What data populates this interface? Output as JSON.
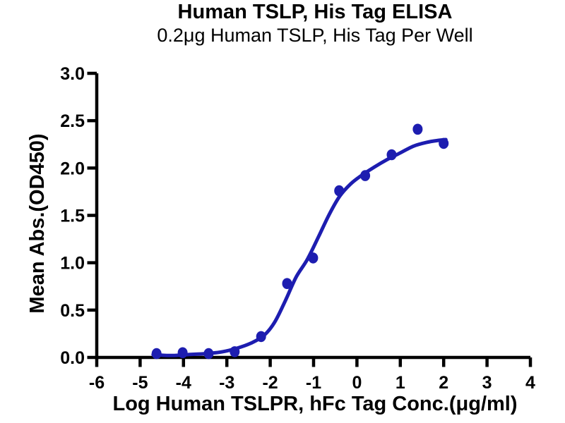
{
  "chart_data": {
    "type": "scatter",
    "title": "Human TSLP, His Tag ELISA",
    "subtitle": "0.2μg Human TSLP, His Tag Per Well",
    "xlabel": "Log Human TSLPR, hFc Tag Conc.(μg/ml)",
    "ylabel": "Mean Abs.(OD450)",
    "xlim": [
      -6,
      4
    ],
    "ylim": [
      0,
      3
    ],
    "x_ticks": [
      -6,
      -5,
      -4,
      -3,
      -2,
      -1,
      0,
      1,
      2,
      3,
      4
    ],
    "y_ticks": [
      0.0,
      0.5,
      1.0,
      1.5,
      2.0,
      2.5,
      3.0
    ],
    "grid": false,
    "legend": null,
    "series": [
      {
        "name": "measured-data-points",
        "type": "scatter",
        "x": [
          -4.62,
          -4.02,
          -3.42,
          -2.82,
          -2.21,
          -1.61,
          -1.01,
          -0.41,
          0.19,
          0.8,
          1.4,
          2.0
        ],
        "y": [
          0.04,
          0.05,
          0.04,
          0.06,
          0.22,
          0.78,
          1.05,
          1.76,
          1.92,
          2.14,
          2.41,
          2.26
        ]
      },
      {
        "name": "sigmoid-fit-curve",
        "type": "line",
        "x": [
          -4.7,
          -4.3,
          -3.9,
          -3.5,
          -3.1,
          -2.75,
          -2.45,
          -2.15,
          -1.9,
          -1.65,
          -1.4,
          -1.15,
          -0.9,
          -0.65,
          -0.4,
          -0.15,
          0.1,
          0.4,
          0.7,
          1.0,
          1.3,
          1.6,
          1.85,
          2.05
        ],
        "y": [
          0.03,
          0.02,
          0.03,
          0.04,
          0.06,
          0.1,
          0.15,
          0.23,
          0.37,
          0.6,
          0.85,
          1.03,
          1.26,
          1.5,
          1.7,
          1.83,
          1.92,
          2.01,
          2.09,
          2.16,
          2.23,
          2.27,
          2.29,
          2.3
        ]
      }
    ],
    "colors": {
      "marker": "#1d1db0",
      "curve": "#1d1db0",
      "axis": "#000000",
      "text": "#000000",
      "background": "#ffffff"
    }
  }
}
